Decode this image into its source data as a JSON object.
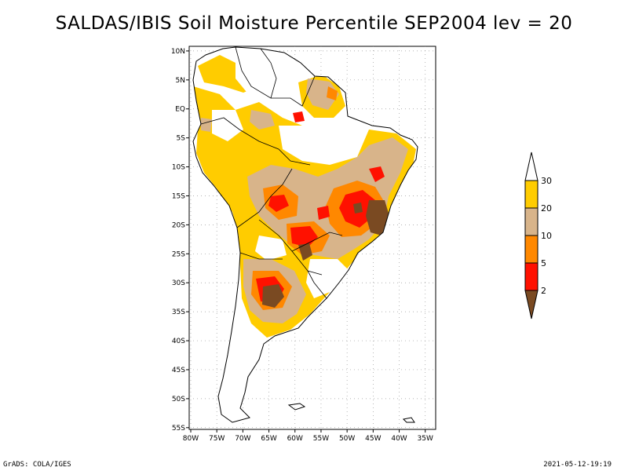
{
  "title": "SALDAS/IBIS Soil Moisture Percentile SEP2004 lev = 20",
  "footer": {
    "left": "GrADS: COLA/IGES",
    "right": "2021-05-12-19:19"
  },
  "map": {
    "lat_labels": [
      "10N",
      "5N",
      "EQ",
      "5S",
      "10S",
      "15S",
      "20S",
      "25S",
      "30S",
      "35S",
      "40S",
      "45S",
      "50S",
      "55S"
    ],
    "lon_labels": [
      "80W",
      "75W",
      "70W",
      "65W",
      "60W",
      "55W",
      "50W",
      "45W",
      "40W",
      "35W"
    ],
    "lat_range": [
      10,
      -55
    ],
    "lon_range": [
      -80,
      -33
    ],
    "grid_lines": "dotted"
  },
  "legend": {
    "ticks": [
      "30",
      "20",
      "10",
      "5",
      "2"
    ],
    "colors": {
      "above_30": "#ffffff",
      "20_30": "#ffcc00",
      "10_20": "#d8b48a",
      "5_10": "#ff8800",
      "2_5": "#ff1100",
      "below_2": "#7a4a22"
    }
  }
}
